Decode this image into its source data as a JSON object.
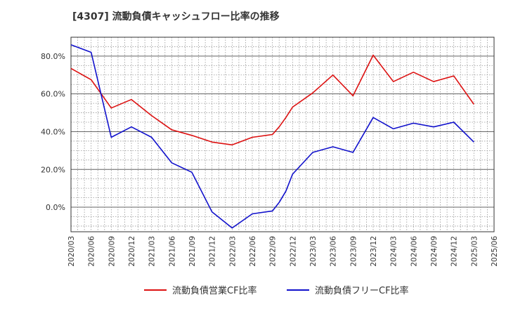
{
  "chart_data": {
    "type": "line",
    "title": "[4307]  流動負債キャッシュフロー比率の推移",
    "xlabel": "",
    "ylabel": "",
    "ylim": [
      -13,
      90
    ],
    "y_ticks": [
      "80.0%",
      "60.0%",
      "40.0%",
      "20.0%",
      "0.0%"
    ],
    "y_tick_values": [
      80,
      60,
      40,
      20,
      0
    ],
    "x_ticks": [
      "2020/03",
      "2020/06",
      "2020/09",
      "2020/12",
      "2021/03",
      "2021/06",
      "2021/09",
      "2021/12",
      "2022/03",
      "2022/06",
      "2022/09",
      "2022/12",
      "2023/03",
      "2023/06",
      "2023/09",
      "2023/12",
      "2024/03",
      "2024/06",
      "2024/09",
      "2024/12",
      "2025/03",
      "2025/06"
    ],
    "grid": true,
    "legend_position": "bottom",
    "series": [
      {
        "name": "流動負債営業CF比率",
        "color": "#dd1111",
        "points": [
          [
            "2020/03",
            73.5
          ],
          [
            "2020/06",
            67.5
          ],
          [
            "2020/09",
            52.5
          ],
          [
            "2020/12",
            57.0
          ],
          [
            "2021/03",
            48.5
          ],
          [
            "2021/06",
            41.0
          ],
          [
            "2021/09",
            38.0
          ],
          [
            "2021/12",
            34.5
          ],
          [
            "2022/03",
            33.0
          ],
          [
            "2022/06",
            37.0
          ],
          [
            "2022/09",
            38.5
          ],
          [
            "2022/10",
            42.5
          ],
          [
            "2022/11",
            47.5
          ],
          [
            "2022/12",
            53.0
          ],
          [
            "2023/03",
            60.5
          ],
          [
            "2023/06",
            70.0
          ],
          [
            "2023/09",
            59.0
          ],
          [
            "2023/12",
            80.5
          ],
          [
            "2024/03",
            66.5
          ],
          [
            "2024/06",
            71.5
          ],
          [
            "2024/09",
            66.5
          ],
          [
            "2024/12",
            69.5
          ],
          [
            "2025/03",
            54.5
          ]
        ]
      },
      {
        "name": "流動負債フリーCF比率",
        "color": "#1111cc",
        "points": [
          [
            "2020/03",
            86.0
          ],
          [
            "2020/06",
            82.0
          ],
          [
            "2020/09",
            37.0
          ],
          [
            "2020/12",
            42.5
          ],
          [
            "2021/03",
            37.0
          ],
          [
            "2021/06",
            23.5
          ],
          [
            "2021/09",
            18.5
          ],
          [
            "2021/12",
            -2.5
          ],
          [
            "2022/03",
            -11.0
          ],
          [
            "2022/06",
            -3.5
          ],
          [
            "2022/09",
            -2.0
          ],
          [
            "2022/10",
            2.5
          ],
          [
            "2022/11",
            8.5
          ],
          [
            "2022/12",
            17.5
          ],
          [
            "2023/03",
            29.0
          ],
          [
            "2023/06",
            32.0
          ],
          [
            "2023/09",
            29.0
          ],
          [
            "2023/12",
            47.5
          ],
          [
            "2024/03",
            41.5
          ],
          [
            "2024/06",
            44.5
          ],
          [
            "2024/09",
            42.5
          ],
          [
            "2024/12",
            45.0
          ],
          [
            "2025/03",
            34.5
          ]
        ]
      }
    ]
  }
}
